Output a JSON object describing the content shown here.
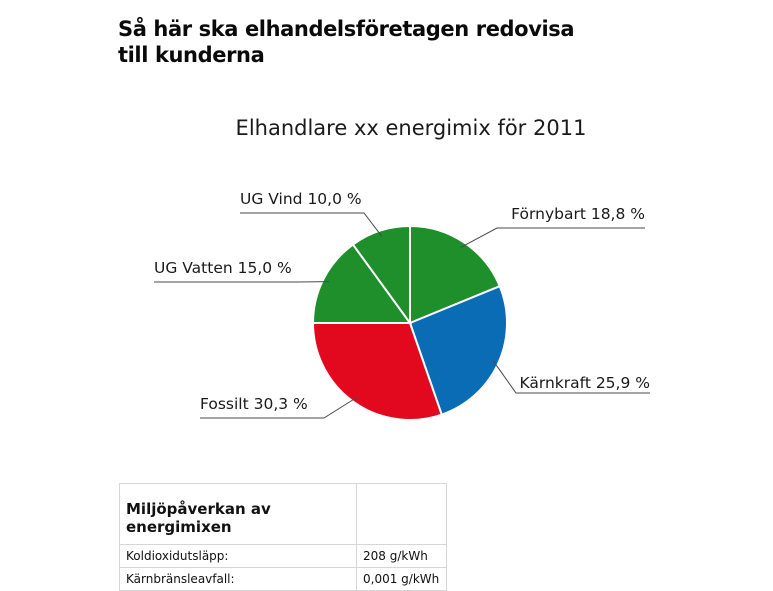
{
  "headline": "Så här ska elhandelsföretagen redovisa till kunderna",
  "chart_data": {
    "type": "pie",
    "title": "Elhandlare xx energimix för 2011",
    "slices": [
      {
        "name": "Förnybart",
        "value": 18.8,
        "label": "Förnybart 18,8 %",
        "color": "#1e8f2a"
      },
      {
        "name": "Kärnkraft",
        "value": 25.9,
        "label": "Kärnkraft 25,9 %",
        "color": "#0a6cb5"
      },
      {
        "name": "Fossilt",
        "value": 30.3,
        "label": "Fossilt 30,3 %",
        "color": "#e2091e"
      },
      {
        "name": "UG Vatten",
        "value": 15.0,
        "label": "UG Vatten 15,0 %",
        "color": "#1e8f2a"
      },
      {
        "name": "UG Vind",
        "value": 10.0,
        "label": "UG Vind 10,0 %",
        "color": "#1e8f2a"
      }
    ],
    "start_angle_deg": 0,
    "direction": "clockwise",
    "slice_border_color": "#ffffff",
    "leader_line_color": "#4a4a4a"
  },
  "impact_table": {
    "header": "Miljöpåverkan av energimixen",
    "rows": [
      {
        "label": "Koldioxidutsläpp:",
        "value": "208 g/kWh"
      },
      {
        "label": "Kärnbränsleavfall:",
        "value": "0,001 g/kWh"
      }
    ]
  }
}
